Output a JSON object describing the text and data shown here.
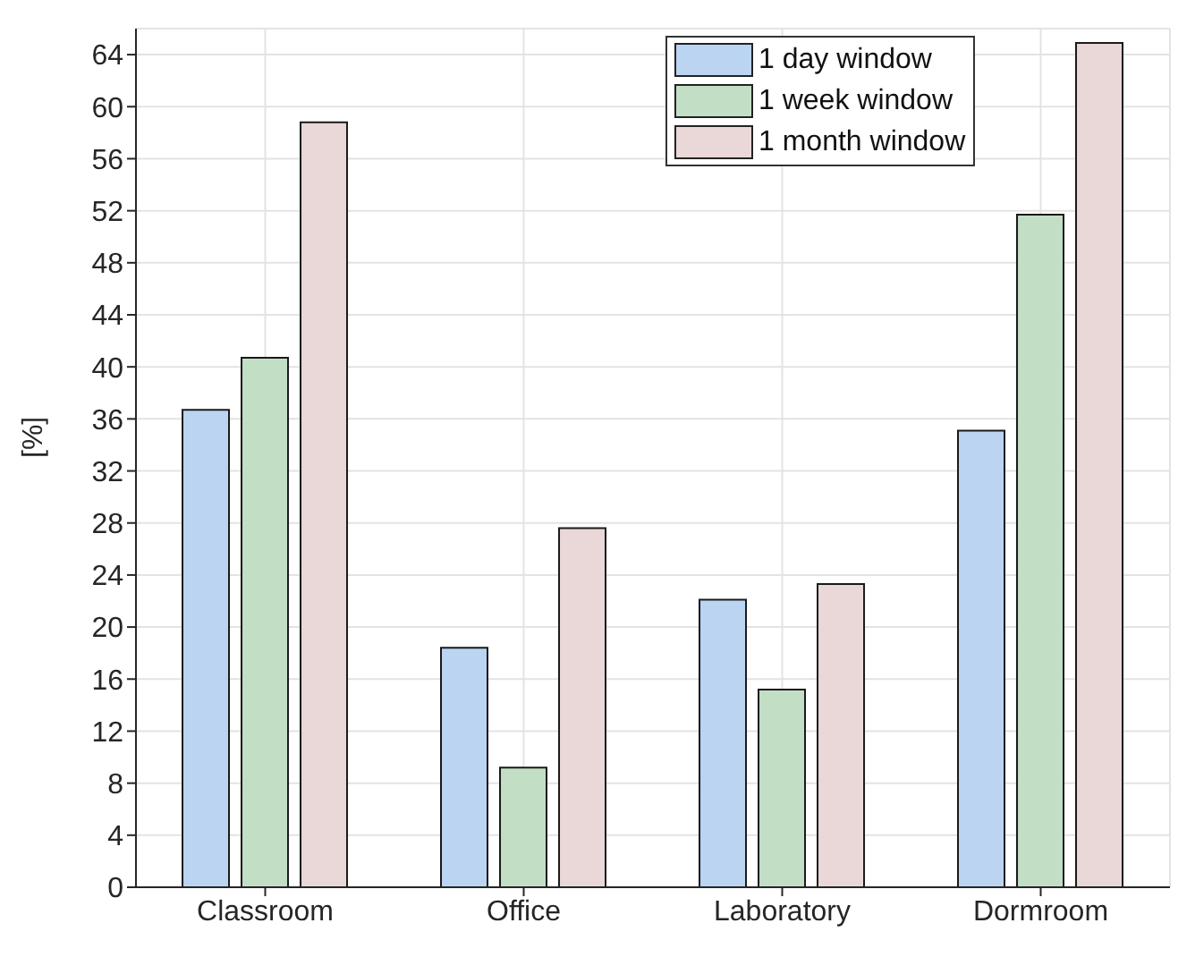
{
  "chart_data": {
    "type": "bar",
    "ylabel": "[%]",
    "categories": [
      "Classroom",
      "Office",
      "Laboratory",
      "Dormroom"
    ],
    "series": [
      {
        "name": "1 day window",
        "color": "#bad4f2",
        "values": [
          36.7,
          18.4,
          22.1,
          35.1
        ]
      },
      {
        "name": "1 week window",
        "color": "#c2dfc5",
        "values": [
          40.7,
          9.2,
          15.2,
          51.7
        ]
      },
      {
        "name": "1 month window",
        "color": "#ead7d7",
        "values": [
          58.8,
          27.6,
          23.3,
          64.9
        ]
      }
    ],
    "ylim": [
      0,
      66
    ],
    "yticks": [
      0,
      4,
      8,
      12,
      16,
      20,
      24,
      28,
      32,
      36,
      40,
      44,
      48,
      52,
      56,
      60,
      64
    ],
    "grid": true,
    "legend": "top right"
  }
}
